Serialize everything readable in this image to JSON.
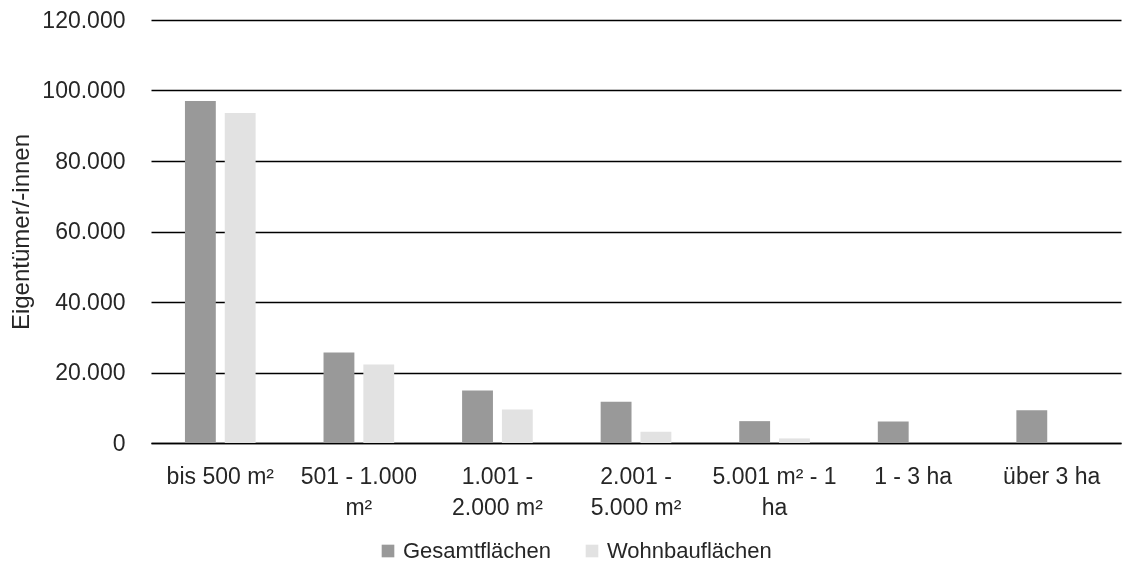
{
  "chart_data": {
    "type": "bar",
    "ylabel": "Eigentümer/-innen",
    "categories": [
      "bis 500 m²",
      "501 - 1.000 m²",
      "1.001 - 2.000 m²",
      "2.001 - 5.000 m²",
      "5.001 m² - 1 ha",
      "1 - 3 ha",
      "über 3 ha"
    ],
    "series": [
      {
        "name": "Gesamtflächen",
        "color": "#999999",
        "values": [
          97000,
          25700,
          14900,
          11700,
          6200,
          6100,
          9300
        ]
      },
      {
        "name": "Wohnbauflächen",
        "color": "#e2e2e2",
        "values": [
          93600,
          22300,
          9500,
          3200,
          1300,
          null,
          null
        ]
      }
    ],
    "ylim": [
      0,
      120000
    ],
    "yticks": [
      0,
      {
        "value": 20000,
        "label": "20.000"
      },
      {
        "value": 40000,
        "label": "40.000"
      },
      {
        "value": 60000,
        "label": "60.000"
      },
      {
        "value": 80000,
        "label": "80.000"
      },
      {
        "value": 100000,
        "label": "100.000"
      },
      {
        "value": 120000,
        "label": "120.000"
      }
    ],
    "grid": "y",
    "legend": "bottom"
  }
}
